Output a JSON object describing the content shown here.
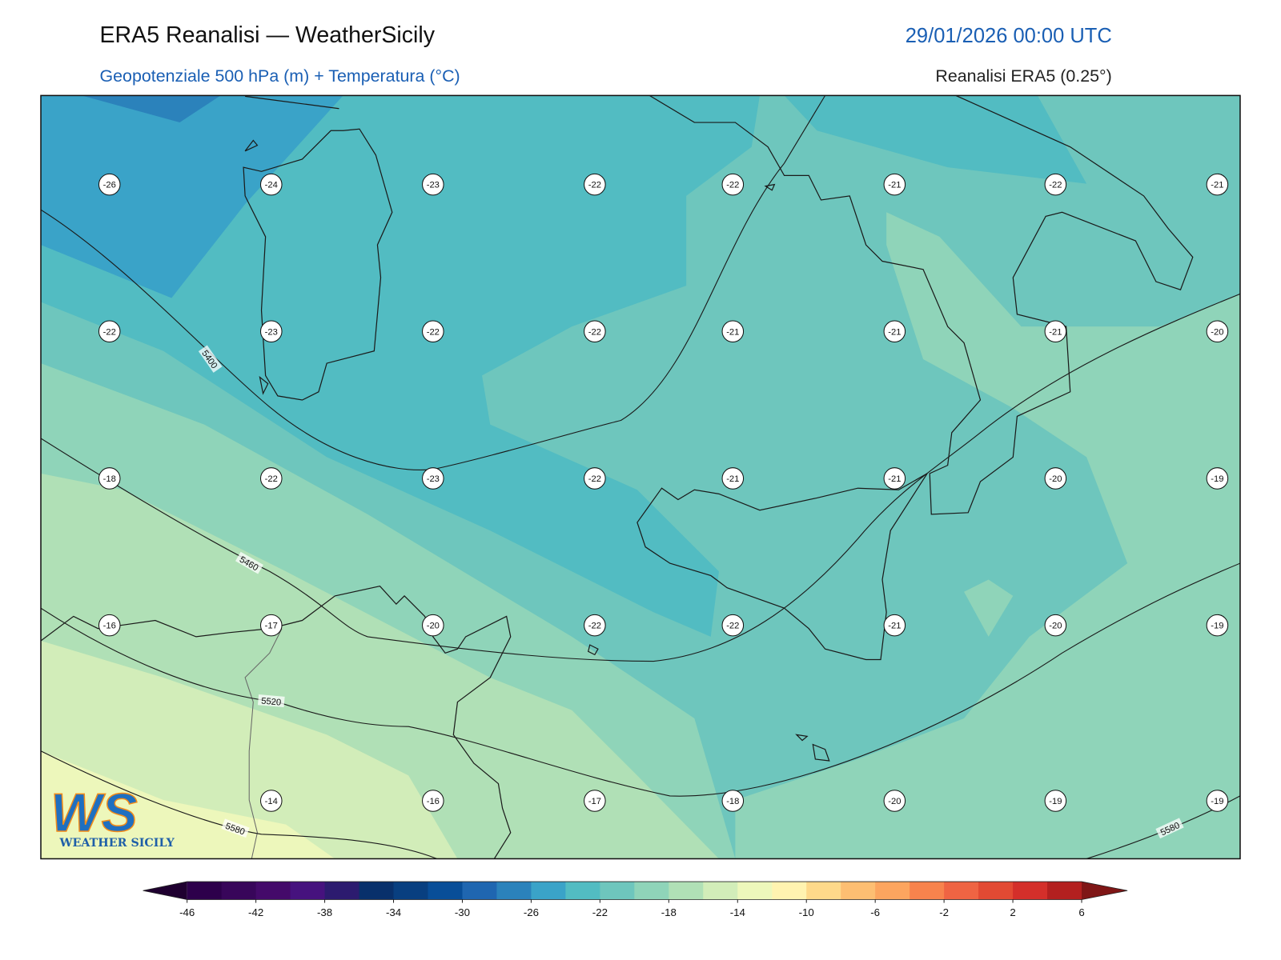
{
  "header": {
    "title": "ERA5 Reanalisi — WeatherSicily",
    "datetime": "29/01/2026 00:00 UTC",
    "subtitle": "Geopotenziale 500 hPa (m) + Temperatura (°C)",
    "source": "Reanalisi ERA5 (0.25°)"
  },
  "temperature_grid": [
    [
      -26,
      -24,
      -23,
      -22,
      -22,
      -21,
      -22,
      -21
    ],
    [
      -22,
      -23,
      -22,
      -22,
      -21,
      -21,
      -21,
      -20
    ],
    [
      -18,
      -22,
      -23,
      -22,
      -21,
      -21,
      -20,
      -19
    ],
    [
      -16,
      -17,
      -20,
      -22,
      -22,
      -21,
      -20,
      -19
    ],
    [
      null,
      -14,
      -16,
      -17,
      -18,
      -20,
      -19,
      -19
    ]
  ],
  "contour_labels": [
    5400,
    5460,
    5520,
    5580,
    5580
  ],
  "colorbar": {
    "ticks": [
      -46,
      -42,
      -38,
      -34,
      -30,
      -26,
      -22,
      -18,
      -14,
      -10,
      -6,
      -2,
      2,
      6
    ],
    "colors": [
      "#2d004b",
      "#38065a",
      "#440a6a",
      "#46127e",
      "#2c1b6f",
      "#08306b",
      "#083f80",
      "#084e98",
      "#1f66b0",
      "#2b82bb",
      "#3aa3c8",
      "#52bcc2",
      "#6ec6bd",
      "#8fd4b9",
      "#b0e0b6",
      "#d2edb9",
      "#edf7bb",
      "#fff3b0",
      "#fed98a",
      "#fdbe72",
      "#fca55f",
      "#f7834d",
      "#ef6443",
      "#e24a33",
      "#d42f2a",
      "#b3201f"
    ],
    "under_color": "#1f0030",
    "over_color": "#7f1616"
  },
  "logo": {
    "mark": "WS",
    "text": "WEATHER SICILY"
  }
}
